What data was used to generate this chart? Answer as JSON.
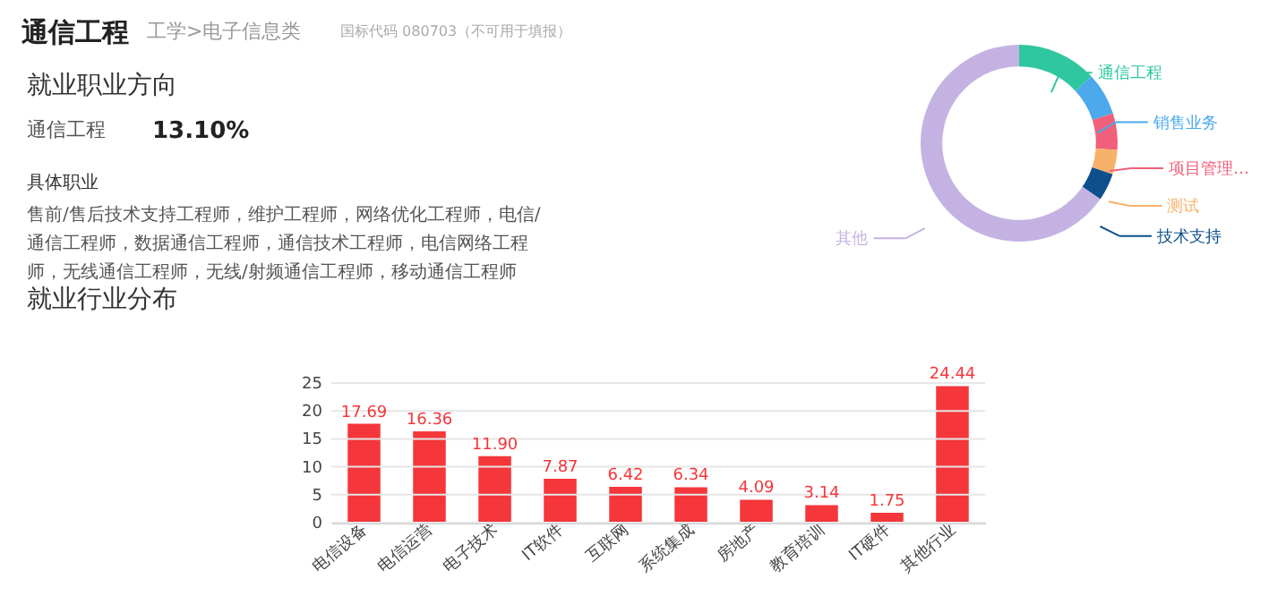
{
  "chart_data": [
    {
      "type": "other",
      "annotations": [
        "通信工程",
        "工学>电子信息类",
        "国标代码 080703（不可用于填报）",
        "就业职业方向",
        "通信工程",
        "13.10%",
        "具体职业",
        "售前/售后技术支持工程师，维护工程师，网络优化工程师，电信/通信工程师，数据通信工程师，通信技术工程师，电信网络工程师，无线通信工程师，无线/射频通信工程师，移动通信工程师"
      ]
    },
    {
      "type": "donut",
      "categories": [
        "通信工程",
        "销售业务",
        "项目管理…",
        "测试",
        "技术支持",
        "其他"
      ],
      "values": [
        13.1,
        7,
        6,
        4,
        4.5,
        65.4
      ],
      "colors": [
        "#2ec7a0",
        "#4ba9ec",
        "#f0607a",
        "#f7b26a",
        "#0d4f8c",
        "#c4b3e2"
      ],
      "legend": "right"
    },
    {
      "type": "bar",
      "title": "就业行业分布",
      "categories": [
        "电信设备",
        "电信运营",
        "电子技术",
        "IT软件",
        "互联网",
        "系统集成",
        "房地产",
        "教育培训",
        "IT硬件",
        "其他行业"
      ],
      "values": [
        17.69,
        16.36,
        11.9,
        7.87,
        6.42,
        6.34,
        4.09,
        3.14,
        1.75,
        24.44
      ],
      "color": "#f5363a",
      "ylim": [
        0,
        25
      ],
      "yticks": [
        0,
        5,
        10,
        15,
        20,
        25
      ],
      "grid": "y",
      "value_labels": [
        "17.69",
        "16.36",
        "11.90",
        "7.87",
        "6.42",
        "6.34",
        "4.09",
        "3.14",
        "1.75",
        "24.44"
      ]
    }
  ]
}
